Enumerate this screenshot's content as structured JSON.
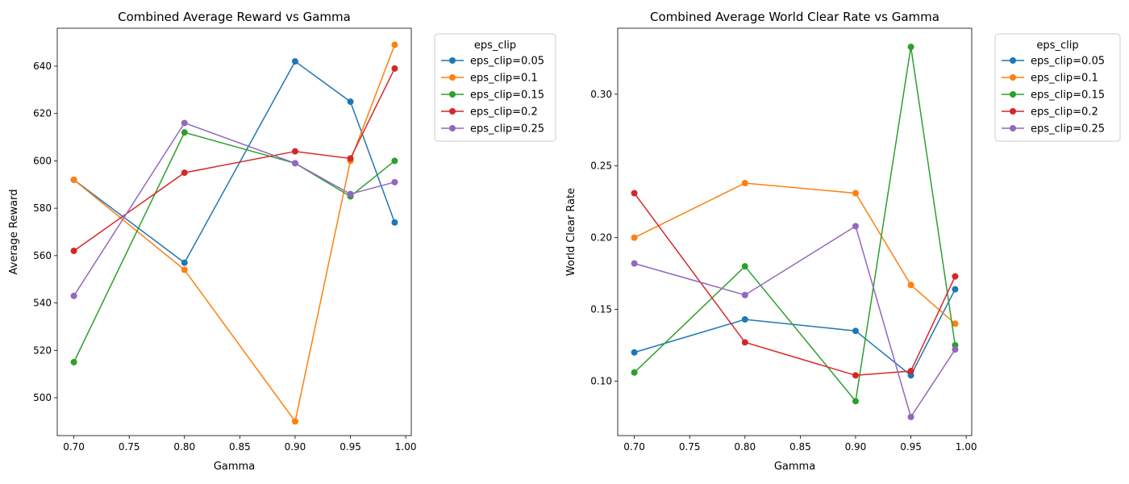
{
  "chart_data": [
    {
      "type": "line",
      "title": "Combined Average Reward vs Gamma",
      "xlabel": "Gamma",
      "ylabel": "Average Reward",
      "xlim": [
        0.685,
        1.005
      ],
      "ylim": [
        484,
        656
      ],
      "xticks": [
        0.7,
        0.75,
        0.8,
        0.85,
        0.9,
        0.95,
        1.0
      ],
      "xtick_labels": [
        "0.70",
        "0.75",
        "0.80",
        "0.85",
        "0.90",
        "0.95",
        "1.00"
      ],
      "yticks": [
        500,
        520,
        540,
        560,
        580,
        600,
        620,
        640
      ],
      "ytick_labels": [
        "500",
        "520",
        "540",
        "560",
        "580",
        "600",
        "620",
        "640"
      ],
      "grid": false,
      "legend": {
        "title": "eps_clip",
        "placement": "outside-right"
      },
      "x": [
        0.7,
        0.8,
        0.9,
        0.95,
        0.99
      ],
      "series": [
        {
          "name": "eps_clip=0.05",
          "color": "#1f77b4",
          "values": [
            592,
            557,
            642,
            625,
            574
          ]
        },
        {
          "name": "eps_clip=0.1",
          "color": "#ff7f0e",
          "values": [
            592,
            554,
            490,
            600,
            649
          ]
        },
        {
          "name": "eps_clip=0.15",
          "color": "#2ca02c",
          "values": [
            515,
            612,
            599,
            585,
            600
          ]
        },
        {
          "name": "eps_clip=0.2",
          "color": "#d62728",
          "values": [
            562,
            595,
            604,
            601,
            639
          ]
        },
        {
          "name": "eps_clip=0.25",
          "color": "#9467bd",
          "values": [
            543,
            616,
            599,
            586,
            591
          ]
        }
      ]
    },
    {
      "type": "line",
      "title": "Combined Average World Clear Rate vs Gamma",
      "xlabel": "Gamma",
      "ylabel": "World Clear Rate",
      "xlim": [
        0.685,
        1.005
      ],
      "ylim": [
        0.062,
        0.346
      ],
      "xticks": [
        0.7,
        0.75,
        0.8,
        0.85,
        0.9,
        0.95,
        1.0
      ],
      "xtick_labels": [
        "0.70",
        "0.75",
        "0.80",
        "0.85",
        "0.90",
        "0.95",
        "1.00"
      ],
      "yticks": [
        0.1,
        0.15,
        0.2,
        0.25,
        0.3
      ],
      "ytick_labels": [
        "0.10",
        "0.15",
        "0.20",
        "0.25",
        "0.30"
      ],
      "grid": false,
      "legend": {
        "title": "eps_clip",
        "placement": "outside-right"
      },
      "x": [
        0.7,
        0.8,
        0.9,
        0.95,
        0.99
      ],
      "series": [
        {
          "name": "eps_clip=0.05",
          "color": "#1f77b4",
          "values": [
            0.12,
            0.143,
            0.135,
            0.104,
            0.164
          ]
        },
        {
          "name": "eps_clip=0.1",
          "color": "#ff7f0e",
          "values": [
            0.2,
            0.238,
            0.231,
            0.167,
            0.14
          ]
        },
        {
          "name": "eps_clip=0.15",
          "color": "#2ca02c",
          "values": [
            0.106,
            0.18,
            0.086,
            0.333,
            0.125
          ]
        },
        {
          "name": "eps_clip=0.2",
          "color": "#d62728",
          "values": [
            0.231,
            0.127,
            0.104,
            0.107,
            0.173
          ]
        },
        {
          "name": "eps_clip=0.25",
          "color": "#9467bd",
          "values": [
            0.182,
            0.16,
            0.208,
            0.075,
            0.122
          ]
        }
      ]
    }
  ]
}
